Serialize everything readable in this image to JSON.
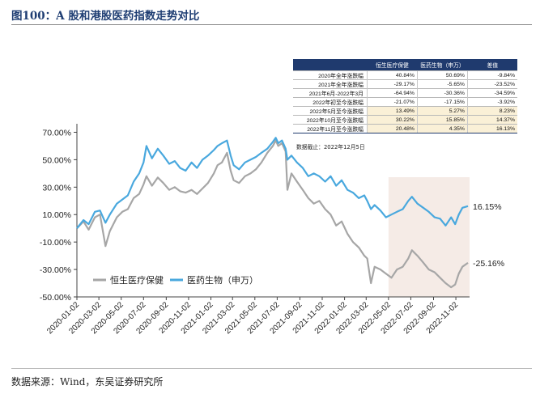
{
  "title": "图100：A 股和港股医药指数走势对比",
  "source": "数据来源：Wind，东吴证券研究所",
  "table": {
    "headers": [
      "",
      "恒生医疗保健",
      "医药生物（申万）",
      "差值"
    ],
    "rows": [
      {
        "label": "2020年全年涨跌幅",
        "a": "40.84%",
        "b": "50.69%",
        "c": "-9.84%",
        "highlight": false
      },
      {
        "label": "2021年全年涨跌幅",
        "a": "-29.17%",
        "b": "-5.65%",
        "c": "-23.52%",
        "highlight": false
      },
      {
        "label": "2021年6月-2022年3月",
        "a": "-64.94%",
        "b": "-30.36%",
        "c": "-34.59%",
        "highlight": false
      },
      {
        "label": "2022年初至今涨跌幅",
        "a": "-21.07%",
        "b": "-17.15%",
        "c": "-3.92%",
        "highlight": false
      },
      {
        "label": "2022年5月至今涨跌幅",
        "a": "13.49%",
        "b": "5.27%",
        "c": "8.23%",
        "highlight": true
      },
      {
        "label": "2022年10月至今涨跌幅",
        "a": "30.22%",
        "b": "15.85%",
        "c": "14.37%",
        "highlight": true
      },
      {
        "label": "2022年11月至今涨跌幅",
        "a": "20.48%",
        "b": "4.35%",
        "c": "16.13%",
        "highlight": true
      }
    ],
    "note": "数据截止：2022年12月5日"
  },
  "colors": {
    "hs": "#a6a6a6",
    "sw": "#49a8de",
    "highlight": "#f5ebe6"
  },
  "chart_data": {
    "type": "line",
    "ylim": [
      -50,
      75
    ],
    "yticks": [
      70,
      50,
      30,
      10,
      -10,
      -30,
      -50
    ],
    "ytick_labels": [
      "70.00%",
      "50.00%",
      "30.00%",
      "10.00%",
      "-10.00%",
      "-30.00%",
      "-50.00%"
    ],
    "xticks": [
      "2020-01-02",
      "2020-03-02",
      "2020-05-02",
      "2020-07-02",
      "2020-09-02",
      "2020-11-02",
      "2021-01-02",
      "2021-03-02",
      "2021-05-02",
      "2021-07-02",
      "2021-09-02",
      "2021-11-02",
      "2022-01-02",
      "2022-03-02",
      "2022-05-02",
      "2022-07-02",
      "2022-09-02",
      "2022-11-02"
    ],
    "x_range": [
      "2020-01-02",
      "2022-12-05"
    ],
    "highlight_range": [
      "2022-05-02",
      "2022-12-05"
    ],
    "series": [
      {
        "name": "恒生医疗保健",
        "color": "#a6a6a6",
        "end_label": "-25.16%",
        "points": [
          [
            "2020-01-02",
            0
          ],
          [
            "2020-01-20",
            5
          ],
          [
            "2020-02-03",
            -1
          ],
          [
            "2020-02-20",
            8
          ],
          [
            "2020-03-05",
            10
          ],
          [
            "2020-03-20",
            -13
          ],
          [
            "2020-04-01",
            -2
          ],
          [
            "2020-04-20",
            8
          ],
          [
            "2020-05-05",
            12
          ],
          [
            "2020-05-20",
            14
          ],
          [
            "2020-06-05",
            22
          ],
          [
            "2020-06-20",
            25
          ],
          [
            "2020-07-02",
            32
          ],
          [
            "2020-07-10",
            38
          ],
          [
            "2020-07-25",
            31
          ],
          [
            "2020-08-10",
            37
          ],
          [
            "2020-08-25",
            33
          ],
          [
            "2020-09-10",
            28
          ],
          [
            "2020-09-25",
            30
          ],
          [
            "2020-10-10",
            27
          ],
          [
            "2020-10-25",
            26
          ],
          [
            "2020-11-10",
            28
          ],
          [
            "2020-11-25",
            25
          ],
          [
            "2020-12-10",
            29
          ],
          [
            "2020-12-25",
            33
          ],
          [
            "2021-01-10",
            40
          ],
          [
            "2021-01-20",
            46
          ],
          [
            "2021-02-01",
            48
          ],
          [
            "2021-02-15",
            55
          ],
          [
            "2021-02-25",
            42
          ],
          [
            "2021-03-05",
            35
          ],
          [
            "2021-03-20",
            33
          ],
          [
            "2021-04-05",
            38
          ],
          [
            "2021-04-20",
            40
          ],
          [
            "2021-05-05",
            43
          ],
          [
            "2021-05-20",
            48
          ],
          [
            "2021-06-05",
            55
          ],
          [
            "2021-06-20",
            60
          ],
          [
            "2021-06-28",
            64
          ],
          [
            "2021-07-05",
            60
          ],
          [
            "2021-07-15",
            62
          ],
          [
            "2021-07-25",
            56
          ],
          [
            "2021-07-30",
            28
          ],
          [
            "2021-08-10",
            40
          ],
          [
            "2021-08-25",
            34
          ],
          [
            "2021-09-10",
            28
          ],
          [
            "2021-09-25",
            22
          ],
          [
            "2021-10-10",
            18
          ],
          [
            "2021-10-25",
            20
          ],
          [
            "2021-11-10",
            14
          ],
          [
            "2021-11-25",
            10
          ],
          [
            "2021-12-10",
            2
          ],
          [
            "2021-12-25",
            5
          ],
          [
            "2022-01-10",
            -4
          ],
          [
            "2022-01-25",
            -10
          ],
          [
            "2022-02-10",
            -14
          ],
          [
            "2022-02-25",
            -20
          ],
          [
            "2022-03-05",
            -22
          ],
          [
            "2022-03-15",
            -40
          ],
          [
            "2022-03-25",
            -28
          ],
          [
            "2022-04-10",
            -30
          ],
          [
            "2022-04-25",
            -33
          ],
          [
            "2022-05-10",
            -36
          ],
          [
            "2022-05-25",
            -30
          ],
          [
            "2022-06-10",
            -28
          ],
          [
            "2022-06-25",
            -22
          ],
          [
            "2022-07-05",
            -16
          ],
          [
            "2022-07-20",
            -20
          ],
          [
            "2022-08-05",
            -25
          ],
          [
            "2022-08-20",
            -30
          ],
          [
            "2022-09-05",
            -32
          ],
          [
            "2022-09-20",
            -36
          ],
          [
            "2022-10-05",
            -40
          ],
          [
            "2022-10-20",
            -43
          ],
          [
            "2022-10-31",
            -41
          ],
          [
            "2022-11-10",
            -33
          ],
          [
            "2022-11-20",
            -28
          ],
          [
            "2022-12-05",
            -25.16
          ]
        ]
      },
      {
        "name": "医药生物（申万）",
        "color": "#49a8de",
        "end_label": "16.15%",
        "points": [
          [
            "2020-01-02",
            0
          ],
          [
            "2020-01-20",
            6
          ],
          [
            "2020-02-03",
            3
          ],
          [
            "2020-02-20",
            12
          ],
          [
            "2020-03-05",
            13
          ],
          [
            "2020-03-20",
            4
          ],
          [
            "2020-04-01",
            10
          ],
          [
            "2020-04-20",
            18
          ],
          [
            "2020-05-05",
            21
          ],
          [
            "2020-05-20",
            24
          ],
          [
            "2020-06-05",
            34
          ],
          [
            "2020-06-20",
            40
          ],
          [
            "2020-07-02",
            48
          ],
          [
            "2020-07-10",
            60
          ],
          [
            "2020-07-25",
            51
          ],
          [
            "2020-08-10",
            58
          ],
          [
            "2020-08-25",
            53
          ],
          [
            "2020-09-10",
            47
          ],
          [
            "2020-09-25",
            49
          ],
          [
            "2020-10-10",
            44
          ],
          [
            "2020-10-25",
            42
          ],
          [
            "2020-11-10",
            48
          ],
          [
            "2020-11-25",
            44
          ],
          [
            "2020-12-10",
            50
          ],
          [
            "2020-12-25",
            53
          ],
          [
            "2021-01-10",
            57
          ],
          [
            "2021-01-20",
            60
          ],
          [
            "2021-02-01",
            62
          ],
          [
            "2021-02-15",
            64
          ],
          [
            "2021-02-25",
            53
          ],
          [
            "2021-03-05",
            46
          ],
          [
            "2021-03-20",
            43
          ],
          [
            "2021-04-05",
            48
          ],
          [
            "2021-04-20",
            50
          ],
          [
            "2021-05-05",
            52
          ],
          [
            "2021-05-20",
            55
          ],
          [
            "2021-06-05",
            58
          ],
          [
            "2021-06-20",
            63
          ],
          [
            "2021-06-28",
            66
          ],
          [
            "2021-07-05",
            62
          ],
          [
            "2021-07-15",
            64
          ],
          [
            "2021-07-25",
            58
          ],
          [
            "2021-07-30",
            50
          ],
          [
            "2021-08-10",
            53
          ],
          [
            "2021-08-25",
            48
          ],
          [
            "2021-09-10",
            44
          ],
          [
            "2021-09-25",
            38
          ],
          [
            "2021-10-10",
            40
          ],
          [
            "2021-10-25",
            38
          ],
          [
            "2021-11-10",
            34
          ],
          [
            "2021-11-25",
            38
          ],
          [
            "2021-12-10",
            31
          ],
          [
            "2021-12-25",
            35
          ],
          [
            "2022-01-10",
            28
          ],
          [
            "2022-01-25",
            26
          ],
          [
            "2022-02-10",
            22
          ],
          [
            "2022-02-25",
            24
          ],
          [
            "2022-03-05",
            20
          ],
          [
            "2022-03-15",
            14
          ],
          [
            "2022-03-25",
            17
          ],
          [
            "2022-04-10",
            13
          ],
          [
            "2022-04-25",
            8
          ],
          [
            "2022-05-10",
            10
          ],
          [
            "2022-05-25",
            12
          ],
          [
            "2022-06-10",
            14
          ],
          [
            "2022-06-25",
            20
          ],
          [
            "2022-07-05",
            23
          ],
          [
            "2022-07-20",
            18
          ],
          [
            "2022-08-05",
            15
          ],
          [
            "2022-08-20",
            12
          ],
          [
            "2022-09-05",
            8
          ],
          [
            "2022-09-20",
            7
          ],
          [
            "2022-10-05",
            2
          ],
          [
            "2022-10-20",
            8
          ],
          [
            "2022-10-31",
            3
          ],
          [
            "2022-11-10",
            10
          ],
          [
            "2022-11-20",
            15
          ],
          [
            "2022-12-05",
            16.15
          ]
        ]
      }
    ]
  }
}
